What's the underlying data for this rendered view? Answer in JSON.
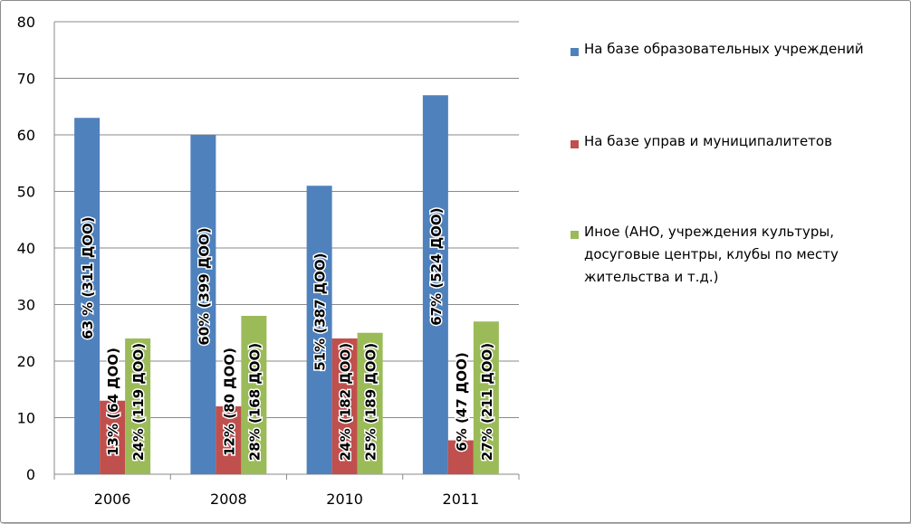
{
  "chart_data": {
    "type": "bar",
    "categories": [
      "2006",
      "2008",
      "2010",
      "2011"
    ],
    "series": [
      {
        "name": "На базе образовательных учреждений",
        "color": "#4f81bd",
        "values": [
          63,
          60,
          51,
          67
        ],
        "labels": [
          "63 %  (311 ДОО)",
          "60% (399 ДОО)",
          "51%  (387  ДОО)",
          "67%  (524 ДОО)"
        ]
      },
      {
        "name": "На базе управ и муниципалитетов",
        "color": "#c0504d",
        "values": [
          13,
          12,
          24,
          6
        ],
        "labels": [
          "13%  (64 ДОО)",
          "12% (80 ДОО)",
          "24%  (182 ДОО)",
          "6%  (47 ДОО)"
        ]
      },
      {
        "name": "Иное (АНО, учреждения культуры, досуговые центры,  клубы по месту жительства и т.д.)",
        "color": "#9bbb59",
        "values": [
          24,
          28,
          25,
          27
        ],
        "labels": [
          "24%  (119 ДОО)",
          "28% (168 ДОО)",
          "25%  (189 ДОО)",
          "27%  (211 ДОО)"
        ]
      }
    ],
    "ylim": [
      0,
      80
    ],
    "yticks": [
      0,
      10,
      20,
      30,
      40,
      50,
      60,
      70,
      80
    ],
    "grid": true,
    "legend": "right",
    "title": "",
    "xlabel": "",
    "ylabel": ""
  }
}
